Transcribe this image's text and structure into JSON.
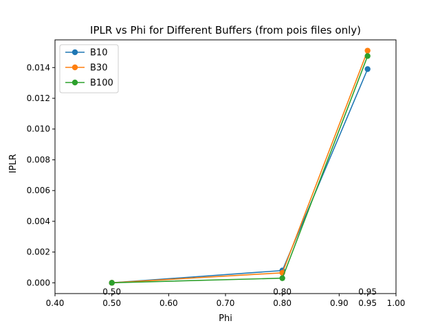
{
  "chart_data": {
    "type": "line",
    "title": "IPLR vs Phi for Different Buffers (from pois files only)",
    "xlabel": "Phi",
    "ylabel": "IPLR",
    "xlim": [
      0.4,
      1.0
    ],
    "ylim": [
      -0.0007,
      0.0158
    ],
    "xticks": [
      0.4,
      0.5,
      0.6,
      0.7,
      0.8,
      0.9,
      0.95,
      1.0
    ],
    "xtick_labels": [
      "0.40",
      "0.50",
      "0.60",
      "0.70",
      "0.80",
      "0.90",
      "0.95",
      "1.00"
    ],
    "yticks": [
      0.0,
      0.002,
      0.004,
      0.006,
      0.008,
      0.01,
      0.012,
      0.014
    ],
    "ytick_labels": [
      "0.000",
      "0.002",
      "0.004",
      "0.006",
      "0.008",
      "0.010",
      "0.012",
      "0.014"
    ],
    "x": [
      0.5,
      0.8,
      0.95
    ],
    "point_labels": [
      "0.50",
      "0.80",
      "0.95"
    ],
    "series": [
      {
        "name": "B10",
        "color": "#1f77b4",
        "values": [
          0.0,
          0.0008,
          0.0139
        ]
      },
      {
        "name": "B30",
        "color": "#ff7f0e",
        "values": [
          0.0,
          0.00065,
          0.0151
        ]
      },
      {
        "name": "B100",
        "color": "#2ca02c",
        "values": [
          0.0,
          0.0003,
          0.01475
        ]
      }
    ],
    "grid": false,
    "legend_position": "top-left"
  }
}
